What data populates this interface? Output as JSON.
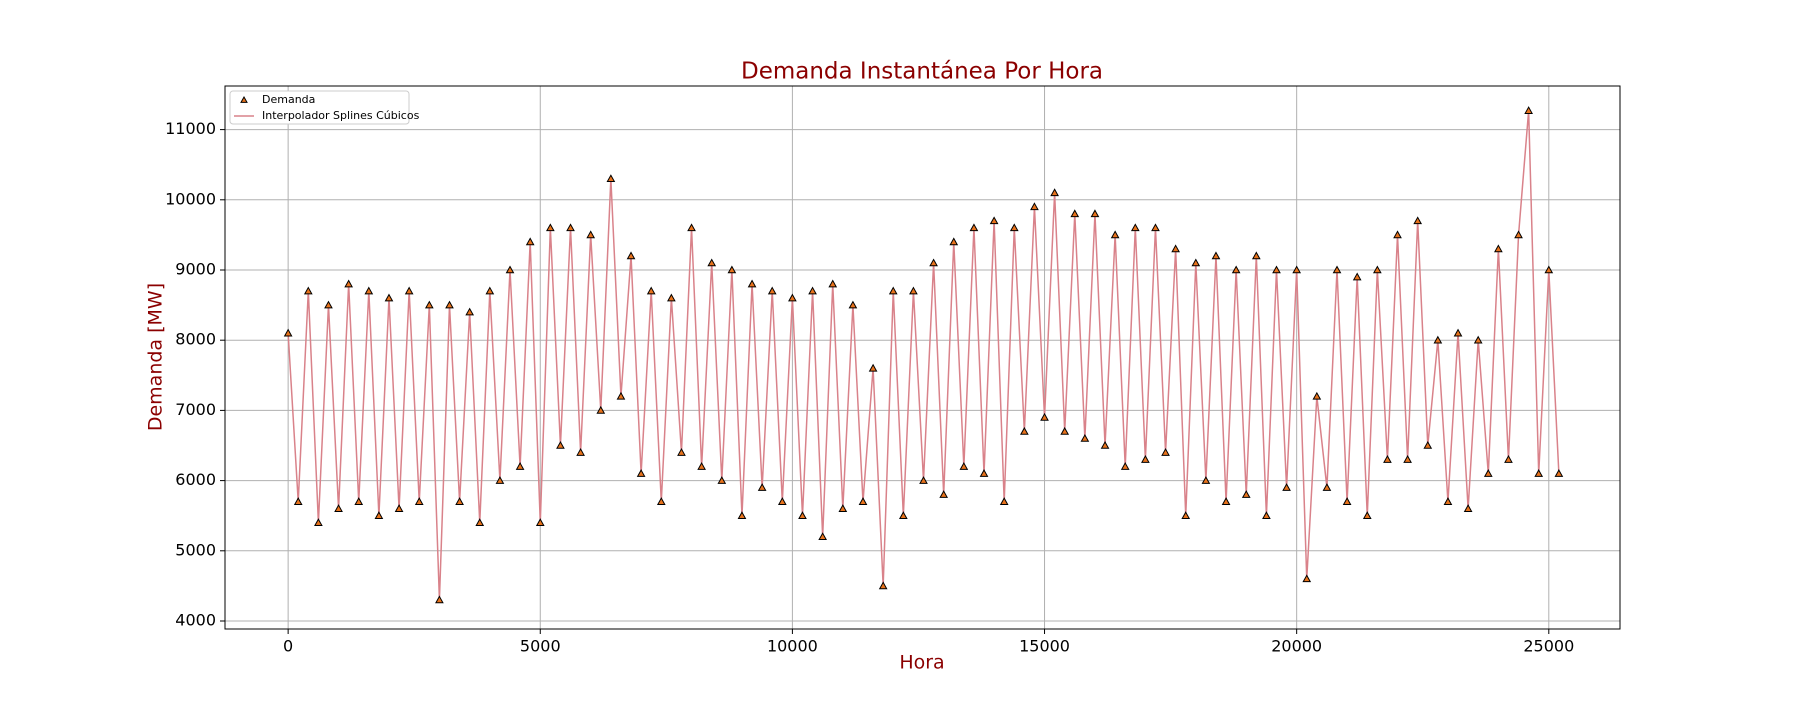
{
  "chart_data": {
    "type": "line",
    "title": "Demanda Instantánea Por Hora",
    "xlabel": "Hora",
    "ylabel": "Demanda [MW]",
    "xlim": [
      -1252,
      26412
    ],
    "ylim": [
      3886,
      11621
    ],
    "xticks": [
      0,
      5000,
      10000,
      15000,
      20000,
      25000
    ],
    "yticks": [
      4000,
      5000,
      6000,
      7000,
      8000,
      9000,
      10000,
      11000
    ],
    "grid": true,
    "legend": "upper left",
    "x": [
      0,
      200,
      400,
      600,
      800,
      1000,
      1200,
      1400,
      1600,
      1800,
      2000,
      2200,
      2400,
      2600,
      2800,
      3000,
      3200,
      3400,
      3600,
      3800,
      4000,
      4200,
      4400,
      4600,
      4800,
      5000,
      5200,
      5400,
      5600,
      5800,
      6000,
      6200,
      6400,
      6600,
      6800,
      7000,
      7200,
      7400,
      7600,
      7800,
      8000,
      8200,
      8400,
      8600,
      8800,
      9000,
      9200,
      9400,
      9600,
      9800,
      10000,
      10200,
      10400,
      10600,
      10800,
      11000,
      11200,
      11400,
      11600,
      11800,
      12000,
      12200,
      12400,
      12600,
      12800,
      13000,
      13200,
      13400,
      13600,
      13800,
      14000,
      14200,
      14400,
      14600,
      14800,
      15000,
      15200,
      15400,
      15600,
      15800,
      16000,
      16200,
      16400,
      16600,
      16800,
      17000,
      17200,
      17400,
      17600,
      17800,
      18000,
      18200,
      18400,
      18600,
      18800,
      19000,
      19200,
      19400,
      19600,
      19800,
      20000,
      20200,
      20400,
      20600,
      20800,
      21000,
      21200,
      21400,
      21600,
      21800,
      22000,
      22200,
      22400,
      22600,
      22800,
      23000,
      23200,
      23400,
      23600,
      23800,
      24000,
      24200,
      24400,
      24600,
      24800,
      25000,
      25200
    ],
    "series": [
      {
        "name": "Demanda",
        "type": "scatter",
        "color": "#e8731c",
        "values": [
          8100,
          5700,
          8700,
          5400,
          8500,
          5600,
          8800,
          5700,
          8700,
          5500,
          8600,
          5600,
          8700,
          5700,
          8500,
          4300,
          8500,
          5700,
          8400,
          5400,
          8700,
          6000,
          9000,
          6200,
          9400,
          5400,
          9600,
          6500,
          9600,
          6400,
          9500,
          7000,
          10300,
          7200,
          9200,
          6100,
          8700,
          5700,
          8600,
          6400,
          9600,
          6200,
          9100,
          6000,
          9000,
          5500,
          8800,
          5900,
          8700,
          5700,
          8600,
          5500,
          8700,
          5200,
          8800,
          5600,
          8500,
          5700,
          7600,
          4500,
          8700,
          5500,
          8700,
          6000,
          9100,
          5800,
          9400,
          6200,
          9600,
          6100,
          9700,
          5700,
          9600,
          6700,
          9900,
          6900,
          10100,
          6700,
          9800,
          6600,
          9800,
          6500,
          9500,
          6200,
          9600,
          6300,
          9600,
          6400,
          9300,
          5500,
          9100,
          6000,
          9200,
          5700,
          9000,
          5800,
          9200,
          5500,
          9000,
          5900,
          9000,
          4600,
          7200,
          5900,
          9000,
          5700,
          8900,
          5500,
          9000,
          6300,
          9500,
          6300,
          9700,
          6500,
          8000,
          5700,
          8100,
          5600,
          8000,
          6100,
          9300,
          6300,
          9500,
          11270,
          6100,
          9000,
          6100
        ]
      },
      {
        "name": "Interpolador Splines Cúbicos",
        "type": "line",
        "color": "#d9828a",
        "values": [
          8100,
          5700,
          8700,
          5400,
          8500,
          5600,
          8800,
          5700,
          8700,
          5500,
          8600,
          5600,
          8700,
          5700,
          8500,
          4300,
          8500,
          5700,
          8400,
          5400,
          8700,
          6000,
          9000,
          6200,
          9400,
          5400,
          9600,
          6500,
          9600,
          6400,
          9500,
          7000,
          10300,
          7200,
          9200,
          6100,
          8700,
          5700,
          8600,
          6400,
          9600,
          6200,
          9100,
          6000,
          9000,
          5500,
          8800,
          5900,
          8700,
          5700,
          8600,
          5500,
          8700,
          5200,
          8800,
          5600,
          8500,
          5700,
          7600,
          4500,
          8700,
          5500,
          8700,
          6000,
          9100,
          5800,
          9400,
          6200,
          9600,
          6100,
          9700,
          5700,
          9600,
          6700,
          9900,
          6900,
          10100,
          6700,
          9800,
          6600,
          9800,
          6500,
          9500,
          6200,
          9600,
          6300,
          9600,
          6400,
          9300,
          5500,
          9100,
          6000,
          9200,
          5700,
          9000,
          5800,
          9200,
          5500,
          9000,
          5900,
          9000,
          4600,
          7200,
          5900,
          9000,
          5700,
          8900,
          5500,
          9000,
          6300,
          9500,
          6300,
          9700,
          6500,
          8000,
          5700,
          8100,
          5600,
          8000,
          6100,
          9300,
          6300,
          9500,
          11270,
          6100,
          9000,
          6100
        ]
      }
    ]
  }
}
